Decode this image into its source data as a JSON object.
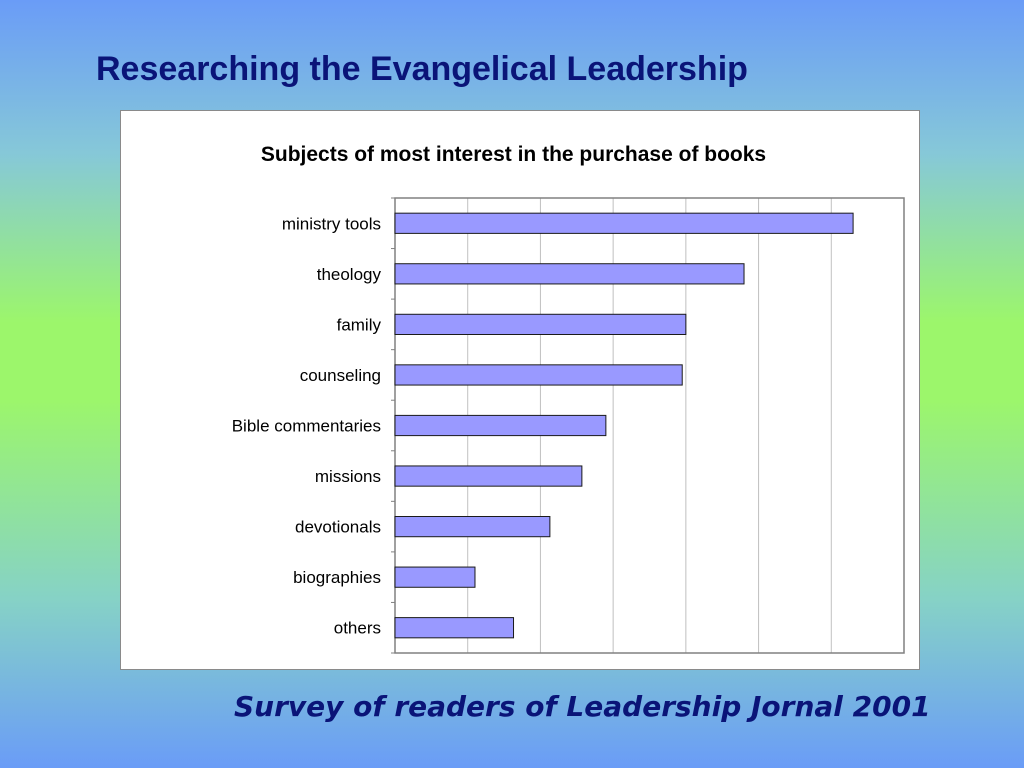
{
  "slide": {
    "title": "Researching the Evangelical Leadership",
    "caption": "Survey of readers of Leadership Jornal 2001"
  },
  "colors": {
    "bar_fill": "#9999ff",
    "bar_stroke": "#1a1a1a",
    "title_color": "#0a1478",
    "gridline": "#c0c0c0"
  },
  "chart_data": {
    "type": "bar",
    "orientation": "horizontal",
    "title": "Subjects of most interest in the purchase of books",
    "categories": [
      "ministry tools",
      "theology",
      "family",
      "counseling",
      "Bible commentaries",
      "missions",
      "devotionals",
      "biographies",
      "others"
    ],
    "values": [
      63,
      48,
      40,
      39.5,
      29,
      25.7,
      21.3,
      11,
      16.3
    ],
    "xlim": [
      0,
      70
    ],
    "grid": true,
    "legend": "none",
    "tick_labels_shown": false
  }
}
